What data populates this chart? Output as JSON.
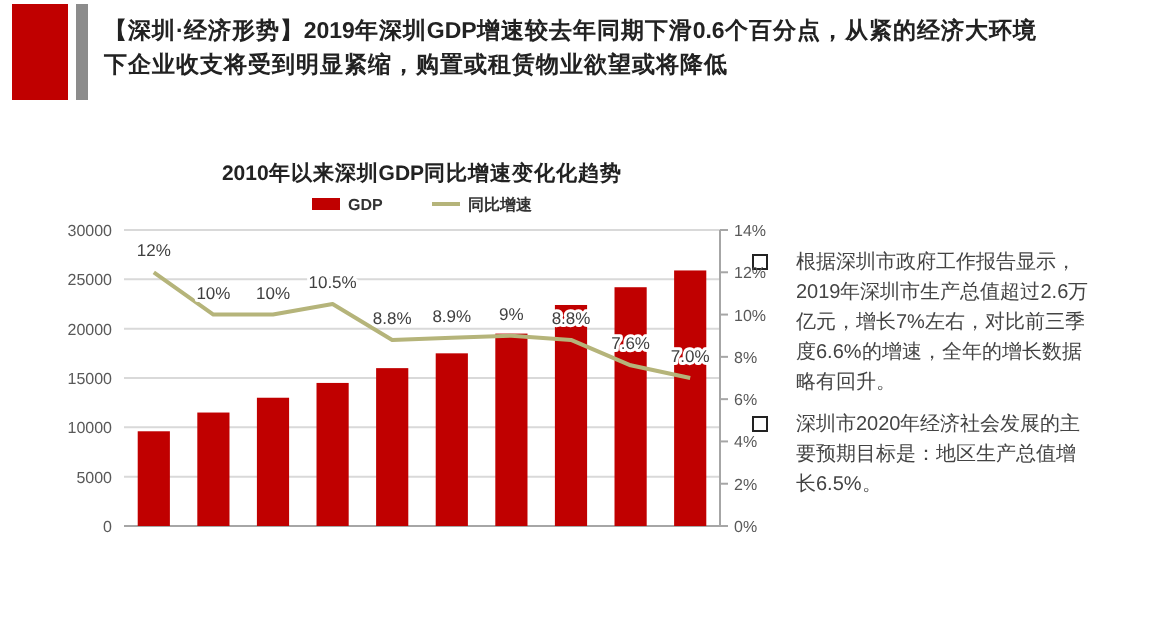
{
  "chart_data": {
    "type": "bar",
    "title": "2010年以来深圳GDP同比增速变化化趋势",
    "categories": [
      null,
      null,
      null,
      null,
      null,
      null,
      null,
      null,
      null,
      null
    ],
    "series": [
      {
        "name": "GDP",
        "color": "#c00000",
        "values": [
          9600,
          11500,
          13000,
          14500,
          16000,
          17500,
          19500,
          22400,
          24200,
          25900
        ]
      },
      {
        "name": "同比增速",
        "type": "line",
        "axis": "y2",
        "color": "#b5b47a",
        "values": [
          12,
          10,
          10,
          10.5,
          8.8,
          8.9,
          9,
          8.8,
          7.6,
          7.0
        ],
        "value_labels": [
          "12%",
          "10%",
          "10%",
          "10.5%",
          "8.8%",
          "8.9%",
          "9%",
          "8.8%",
          "7.6%",
          "7.0%"
        ]
      }
    ],
    "ylim": [
      0,
      30000
    ],
    "yticks": [
      0,
      5000,
      10000,
      15000,
      20000,
      25000,
      30000
    ],
    "y2lim": [
      0,
      14
    ],
    "y2ticks": [
      {
        "value": 0,
        "label": "0%"
      },
      {
        "value": 2,
        "label": "2%"
      },
      {
        "value": 4,
        "label": "4%"
      },
      {
        "value": 6,
        "label": "6%"
      },
      {
        "value": 8,
        "label": "8%"
      },
      {
        "value": 10,
        "label": "10%"
      },
      {
        "value": 12,
        "label": "12%"
      },
      {
        "value": 14,
        "label": "14%"
      }
    ],
    "grid": "y",
    "legend": "top",
    "marker": "none",
    "line_style": "solid",
    "annotations": [
      "【深圳·经济形势】2019年深圳GDP增速较去年同期下滑0.6个百分点，从紧的经济大环境下企业收支将受到明显紧缩，购置或租赁物业欲望或将降低",
      "根据深圳市政府工作报告显示，2019年深圳市生产总值超过2.6万亿元，增长7%左右，对比前三季度6.6%的增速，全年的增长数据略有回升。",
      "深圳市2020年经济社会发展的主要预期目标是：地区生产总值增长6.5%。"
    ]
  }
}
